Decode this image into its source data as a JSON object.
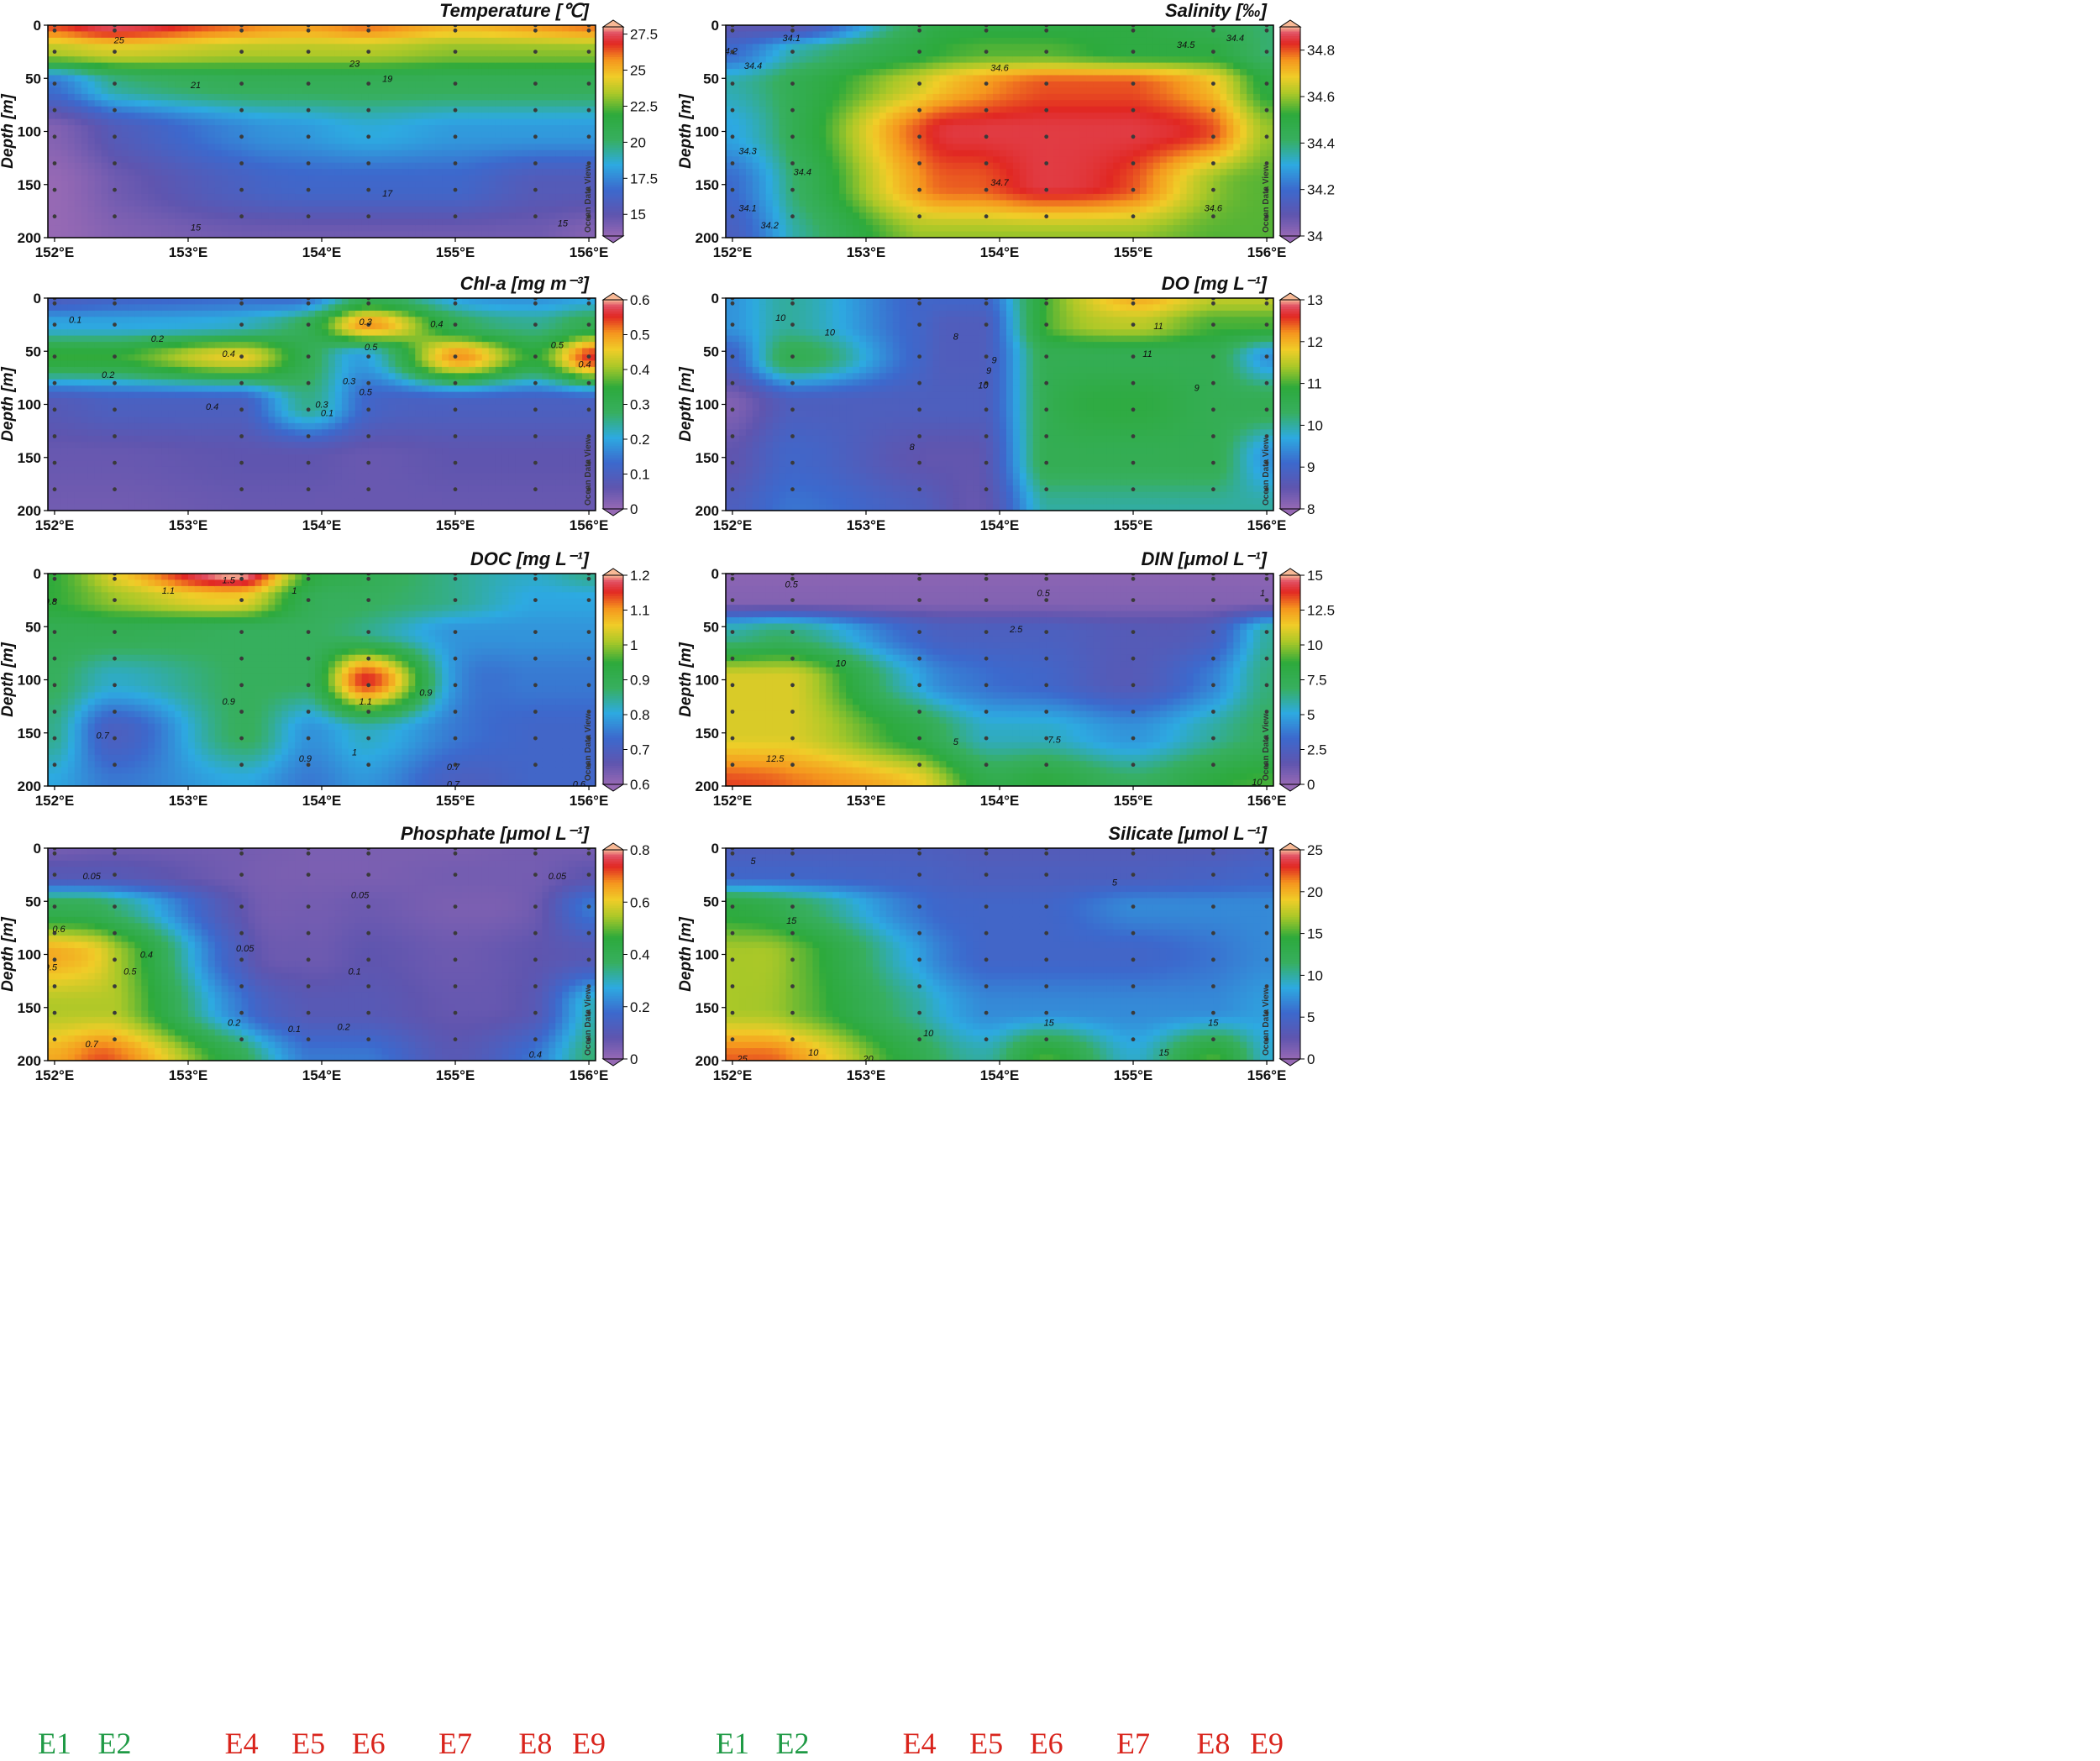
{
  "figure": {
    "watermark": "Ocean Data View",
    "y_axis_label": "Depth [m]",
    "x_ticks": [
      "152°E",
      "153°E",
      "154°E",
      "155°E",
      "156°E"
    ],
    "y_ticks": [
      "0",
      "50",
      "100",
      "150",
      "200"
    ],
    "colors": {
      "station_green": "#1f9a45",
      "station_red": "#d9241c"
    }
  },
  "stations": [
    {
      "name": "E1",
      "lon": 152.0,
      "color": "#1f9a45"
    },
    {
      "name": "E2",
      "lon": 152.45,
      "color": "#1f9a45"
    },
    {
      "name": "E4",
      "lon": 153.4,
      "color": "#d9241c"
    },
    {
      "name": "E5",
      "lon": 153.9,
      "color": "#d9241c"
    },
    {
      "name": "E6",
      "lon": 154.35,
      "color": "#d9241c"
    },
    {
      "name": "E7",
      "lon": 155.0,
      "color": "#d9241c"
    },
    {
      "name": "E8",
      "lon": 155.6,
      "color": "#d9241c"
    },
    {
      "name": "E9",
      "lon": 156.0,
      "color": "#d9241c"
    }
  ],
  "chart_data": [
    {
      "type": "heatmap",
      "title": "Temperature [℃]",
      "xlabel": "",
      "ylabel": "Depth [m]",
      "xlim": [
        151.95,
        156.05
      ],
      "ylim": [
        200,
        0
      ],
      "colorbar": {
        "min": 13.5,
        "max": 28,
        "ticks": [
          "15",
          "17.5",
          "20",
          "22.5",
          "25",
          "27.5"
        ]
      },
      "depths": [
        0,
        25,
        55,
        100,
        150,
        200
      ],
      "grid": [
        [
          26.5,
          27.5,
          26.0,
          25.5,
          26.0,
          25.0,
          25.5,
          26.0
        ],
        [
          23.5,
          24.0,
          23.5,
          23.5,
          23.5,
          23.0,
          23.0,
          23.0
        ],
        [
          17.0,
          19.5,
          20.5,
          20.5,
          20.5,
          20.5,
          20.5,
          20.5
        ],
        [
          14.0,
          15.5,
          17.5,
          18.0,
          18.5,
          18.0,
          18.0,
          18.0
        ],
        [
          13.5,
          14.5,
          16.0,
          16.5,
          16.5,
          16.5,
          15.5,
          15.5
        ],
        [
          13.5,
          14.0,
          14.5,
          14.5,
          14.5,
          14.5,
          14.5,
          14.0
        ]
      ],
      "contour_labels": [
        "25",
        "23",
        "21",
        "19",
        "17",
        "15",
        "15"
      ]
    },
    {
      "type": "heatmap",
      "title": "Salinity [‰]",
      "xlabel": "",
      "ylabel": "Depth [m]",
      "xlim": [
        151.95,
        156.05
      ],
      "ylim": [
        200,
        0
      ],
      "colorbar": {
        "min": 34.0,
        "max": 34.9,
        "ticks": [
          "34",
          "34.2",
          "34.4",
          "34.6",
          "34.8"
        ]
      },
      "depths": [
        0,
        25,
        55,
        100,
        150,
        200
      ],
      "grid": [
        [
          34.1,
          34.1,
          34.45,
          34.5,
          34.5,
          34.5,
          34.45,
          34.4
        ],
        [
          34.2,
          34.35,
          34.5,
          34.55,
          34.55,
          34.5,
          34.5,
          34.4
        ],
        [
          34.35,
          34.45,
          34.65,
          34.75,
          34.8,
          34.8,
          34.7,
          34.5
        ],
        [
          34.3,
          34.45,
          34.8,
          34.85,
          34.85,
          34.85,
          34.8,
          34.6
        ],
        [
          34.2,
          34.4,
          34.75,
          34.8,
          34.85,
          34.8,
          34.6,
          34.55
        ],
        [
          34.15,
          34.35,
          34.6,
          34.6,
          34.6,
          34.6,
          34.55,
          34.55
        ]
      ],
      "contour_labels": [
        "34.1",
        "34.2",
        "34.5",
        "34.4",
        "34.4",
        "34.6",
        "34.7",
        "34.6",
        "34.3",
        "34.4",
        "34.1",
        "34.2"
      ]
    },
    {
      "type": "heatmap",
      "title": "Chl-a [mg m⁻³]",
      "xlabel": "",
      "ylabel": "Depth [m]",
      "xlim": [
        151.95,
        156.05
      ],
      "ylim": [
        200,
        0
      ],
      "colorbar": {
        "min": 0,
        "max": 0.6,
        "ticks": [
          "0",
          "0.1",
          "0.2",
          "0.3",
          "0.4",
          "0.5",
          "0.6"
        ]
      },
      "depths": [
        0,
        25,
        55,
        100,
        150,
        200
      ],
      "grid": [
        [
          0.1,
          0.12,
          0.14,
          0.15,
          0.3,
          0.2,
          0.18,
          0.2
        ],
        [
          0.2,
          0.2,
          0.22,
          0.3,
          0.5,
          0.3,
          0.25,
          0.3
        ],
        [
          0.35,
          0.35,
          0.45,
          0.3,
          0.2,
          0.5,
          0.35,
          0.55
        ],
        [
          0.08,
          0.1,
          0.1,
          0.25,
          0.12,
          0.1,
          0.1,
          0.1
        ],
        [
          0.05,
          0.05,
          0.06,
          0.06,
          0.05,
          0.06,
          0.06,
          0.06
        ],
        [
          0.04,
          0.04,
          0.05,
          0.05,
          0.05,
          0.05,
          0.05,
          0.05
        ]
      ],
      "contour_labels": [
        "0.1",
        "0.2",
        "0.3",
        "0.4",
        "0.3",
        "0.5",
        "0.4",
        "0.2",
        "0.5",
        "0.4",
        "0.4",
        "0.5",
        "0.1",
        "0.3"
      ]
    },
    {
      "type": "heatmap",
      "title": "DO [mg L⁻¹]",
      "xlabel": "",
      "ylabel": "Depth [m]",
      "xlim": [
        151.95,
        156.05
      ],
      "ylim": [
        200,
        0
      ],
      "colorbar": {
        "min": 8,
        "max": 13,
        "ticks": [
          "8",
          "9",
          "10",
          "11",
          "12",
          "13"
        ]
      },
      "depths": [
        0,
        25,
        55,
        100,
        150,
        200
      ],
      "grid": [
        [
          9.5,
          10.0,
          9.0,
          9.0,
          11.0,
          12.0,
          11.5,
          11.5
        ],
        [
          9.5,
          10.0,
          9.0,
          8.8,
          11.0,
          11.5,
          11.0,
          11.0
        ],
        [
          9.0,
          10.5,
          9.0,
          8.8,
          10.5,
          10.5,
          10.5,
          9.5
        ],
        [
          8.2,
          8.8,
          8.8,
          8.8,
          10.5,
          10.8,
          10.5,
          10.5
        ],
        [
          8.5,
          9.0,
          8.5,
          8.6,
          10.5,
          10.5,
          10.5,
          9.5
        ],
        [
          8.8,
          9.2,
          8.8,
          8.5,
          10.0,
          10.0,
          10.0,
          10.0
        ]
      ],
      "contour_labels": [
        "10",
        "9",
        "11",
        "11",
        "9",
        "10",
        "8",
        "8",
        "9",
        "10"
      ]
    },
    {
      "type": "heatmap",
      "title": "DOC [mg L⁻¹]",
      "xlabel": "",
      "ylabel": "Depth [m]",
      "xlim": [
        151.95,
        156.05
      ],
      "ylim": [
        200,
        0
      ],
      "colorbar": {
        "min": 0.6,
        "max": 1.2,
        "ticks": [
          "0.6",
          "0.7",
          "0.8",
          "0.9",
          "1",
          "1.1",
          "1.2"
        ]
      },
      "depths": [
        0,
        25,
        55,
        100,
        150,
        200
      ],
      "grid": [
        [
          0.95,
          1.05,
          1.2,
          0.95,
          0.9,
          0.85,
          0.82,
          0.85
        ],
        [
          0.95,
          1.0,
          1.05,
          0.9,
          0.88,
          0.85,
          0.8,
          0.8
        ],
        [
          0.9,
          0.9,
          0.88,
          0.88,
          0.85,
          0.78,
          0.78,
          0.78
        ],
        [
          0.88,
          0.82,
          0.88,
          0.88,
          1.15,
          0.78,
          0.75,
          0.75
        ],
        [
          0.85,
          0.7,
          0.88,
          0.78,
          0.82,
          0.75,
          0.72,
          0.72
        ],
        [
          0.8,
          0.75,
          0.8,
          0.75,
          0.78,
          0.7,
          0.72,
          0.72
        ]
      ],
      "contour_labels": [
        "1.5",
        "1.1",
        "1",
        "0.8",
        "0.9",
        "1.1",
        "1",
        "0.9",
        "0.7",
        "0.9",
        "0.7",
        "0.7",
        "0.6"
      ]
    },
    {
      "type": "heatmap",
      "title": "DIN [μmol L⁻¹]",
      "xlabel": "",
      "ylabel": "Depth [m]",
      "xlim": [
        151.95,
        156.05
      ],
      "ylim": [
        200,
        0
      ],
      "colorbar": {
        "min": 0,
        "max": 15,
        "ticks": [
          "0",
          "2.5",
          "5",
          "7.5",
          "10",
          "12.5",
          "15"
        ]
      },
      "depths": [
        0,
        25,
        55,
        100,
        150,
        200
      ],
      "grid": [
        [
          0.3,
          0.3,
          0.3,
          0.3,
          0.3,
          0.3,
          0.3,
          0.3
        ],
        [
          0.5,
          0.5,
          0.5,
          0.5,
          0.5,
          0.5,
          0.5,
          0.5
        ],
        [
          6.0,
          6.5,
          3.0,
          2.5,
          2.5,
          2.0,
          2.5,
          6.0
        ],
        [
          11.0,
          11.0,
          5.0,
          3.5,
          3.0,
          2.0,
          4.0,
          6.5
        ],
        [
          11.0,
          11.0,
          8.0,
          5.5,
          5.5,
          4.5,
          6.0,
          7.0
        ],
        [
          13.5,
          13.0,
          11.5,
          8.0,
          8.5,
          7.0,
          8.5,
          9.0
        ]
      ],
      "contour_labels": [
        "0.5",
        "0.5",
        "1",
        "2.5",
        "10",
        "5",
        "7.5",
        "12.5",
        "10"
      ]
    },
    {
      "type": "heatmap",
      "title": "Phosphate [μmol L⁻¹]",
      "xlabel": "",
      "ylabel": "Depth [m]",
      "xlim": [
        151.95,
        156.05
      ],
      "ylim": [
        200,
        0
      ],
      "colorbar": {
        "min": 0,
        "max": 0.8,
        "ticks": [
          "0",
          "0.2",
          "0.4",
          "0.6",
          "0.8"
        ]
      },
      "depths": [
        0,
        25,
        55,
        100,
        150,
        200
      ],
      "grid": [
        [
          0.05,
          0.06,
          0.05,
          0.04,
          0.04,
          0.04,
          0.05,
          0.05
        ],
        [
          0.1,
          0.1,
          0.05,
          0.04,
          0.04,
          0.05,
          0.05,
          0.08
        ],
        [
          0.4,
          0.35,
          0.08,
          0.05,
          0.06,
          0.04,
          0.06,
          0.2
        ],
        [
          0.65,
          0.55,
          0.12,
          0.06,
          0.08,
          0.06,
          0.08,
          0.1
        ],
        [
          0.55,
          0.55,
          0.2,
          0.1,
          0.1,
          0.07,
          0.1,
          0.3
        ],
        [
          0.65,
          0.7,
          0.4,
          0.2,
          0.2,
          0.1,
          0.2,
          0.35
        ]
      ],
      "contour_labels": [
        "0.05",
        "0.05",
        "0.05",
        "0.6",
        "0.4",
        "0.5",
        "0.05",
        "0.1",
        "0.5",
        "0.1",
        "0.2",
        "0.2",
        "0.7",
        "0.4"
      ]
    },
    {
      "type": "heatmap",
      "title": "Silicate [μmol L⁻¹]",
      "xlabel": "",
      "ylabel": "Depth [m]",
      "xlim": [
        151.95,
        156.05
      ],
      "ylim": [
        200,
        0
      ],
      "colorbar": {
        "min": 0,
        "max": 25,
        "ticks": [
          "0",
          "5",
          "10",
          "15",
          "20",
          "25"
        ]
      },
      "depths": [
        0,
        25,
        55,
        100,
        150,
        200
      ],
      "grid": [
        [
          4.0,
          4.0,
          4.0,
          3.5,
          3.5,
          3.5,
          3.5,
          4.0
        ],
        [
          5.0,
          5.0,
          4.5,
          4.0,
          4.0,
          4.0,
          4.5,
          5.0
        ],
        [
          14.0,
          12.0,
          6.0,
          5.0,
          5.0,
          7.0,
          7.0,
          7.0
        ],
        [
          17.0,
          16.0,
          8.0,
          5.0,
          5.0,
          5.0,
          6.0,
          7.0
        ],
        [
          17.0,
          16.0,
          10.0,
          7.0,
          7.0,
          7.0,
          7.0,
          8.0
        ],
        [
          22.0,
          21.0,
          13.0,
          10.0,
          15.0,
          9.0,
          15.0,
          9.0
        ]
      ],
      "contour_labels": [
        "5",
        "5",
        "15",
        "10",
        "15",
        "10",
        "15",
        "15",
        "25",
        "20"
      ]
    }
  ]
}
